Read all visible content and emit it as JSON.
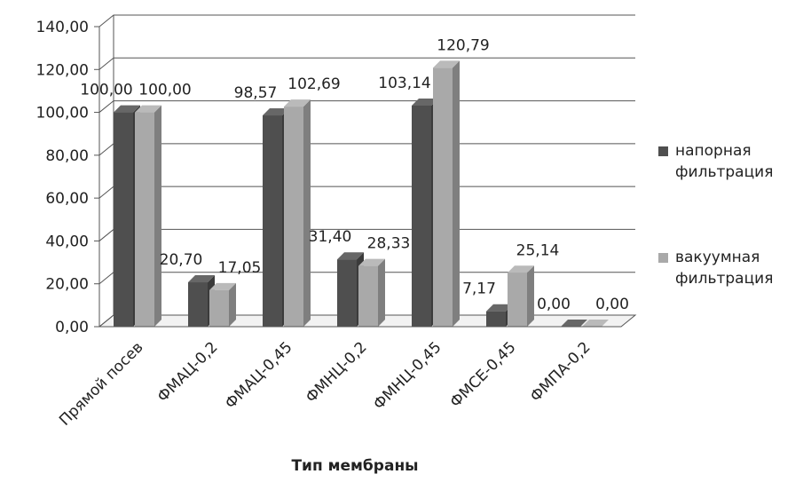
{
  "chart_data": {
    "type": "bar3d",
    "x_label": "Тип мембраны",
    "categories": [
      "Прямой посев",
      "ФМАЦ-0,2",
      "ФМАЦ-0,45",
      "ФМНЦ-0,2",
      "ФМНЦ-0,45",
      "ФМСЕ-0,45",
      "ФМПА-0,2"
    ],
    "series": [
      {
        "name": "напорная фильтрация",
        "color": "#4f4f4f",
        "values": [
          100,
          20.7,
          98.57,
          31.4,
          103.14,
          7.17,
          0
        ],
        "value_labels": [
          "100,00",
          "20,70",
          "98,57",
          "31,40",
          "103,14",
          "7,17",
          "0,00"
        ]
      },
      {
        "name": "вакуумная фильтрация",
        "color": "#a9a9a9",
        "values": [
          100,
          17.05,
          102.69,
          28.33,
          120.79,
          25.14,
          0
        ],
        "value_labels": [
          "100,00",
          "17,05",
          "102,69",
          "28,33",
          "120,79",
          "25,14",
          "0,00"
        ]
      }
    ],
    "ylim": [
      0,
      140
    ],
    "yticks": [
      {
        "value": 0,
        "label": "0,00"
      },
      {
        "value": 20,
        "label": "20,00"
      },
      {
        "value": 40,
        "label": "40,00"
      },
      {
        "value": 60,
        "label": "60,00"
      },
      {
        "value": 80,
        "label": "80,00"
      },
      {
        "value": 100,
        "label": "100,00"
      },
      {
        "value": 120,
        "label": "120,00"
      },
      {
        "value": 140,
        "label": "140,00"
      }
    ],
    "grid": true
  }
}
